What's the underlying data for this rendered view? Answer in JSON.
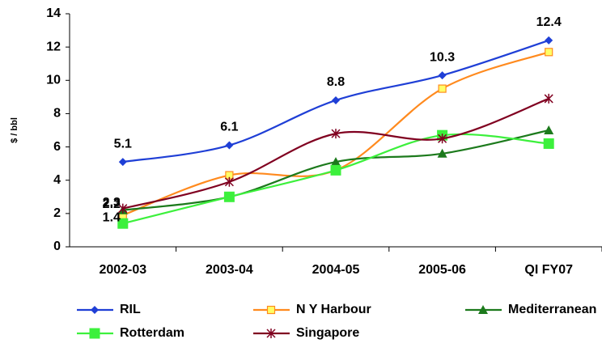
{
  "chart_data": {
    "type": "line",
    "y_label": "$ / bbl",
    "categories": [
      "2002-03",
      "2003-04",
      "2004-05",
      "2005-06",
      "QI FY07"
    ],
    "ylim": [
      0,
      14
    ],
    "yticks": [
      0,
      2,
      4,
      6,
      8,
      10,
      12,
      14
    ],
    "grid": false,
    "series": [
      {
        "name": "RIL",
        "color": "#1f3fd6",
        "marker": "diamond",
        "values": [
          5.1,
          6.1,
          8.8,
          10.3,
          12.4
        ],
        "value_labels": [
          "5.1",
          "6.1",
          "8.8",
          "10.3",
          "12.4"
        ]
      },
      {
        "name": "N Y Harbour",
        "color": "#ff8a1e",
        "marker": "square",
        "values": [
          1.9,
          4.3,
          4.6,
          9.5,
          11.7
        ]
      },
      {
        "name": "Mediterranean",
        "color": "#1c7a1c",
        "marker": "triangle",
        "values": [
          2.2,
          3.0,
          5.1,
          5.6,
          7.0
        ],
        "value_labels": [
          "2.2",
          null,
          null,
          null,
          null
        ]
      },
      {
        "name": "Rotterdam",
        "color": "#3cf03c",
        "marker": "bigsquare",
        "values": [
          1.4,
          3.0,
          4.6,
          6.7,
          6.2
        ],
        "value_labels": [
          "1.4",
          null,
          null,
          null,
          null
        ]
      },
      {
        "name": "Singapore",
        "color": "#800020",
        "marker": "star",
        "values": [
          2.3,
          3.9,
          6.8,
          6.5,
          8.9
        ],
        "value_labels": [
          "2.3",
          null,
          null,
          null,
          null
        ]
      }
    ]
  }
}
